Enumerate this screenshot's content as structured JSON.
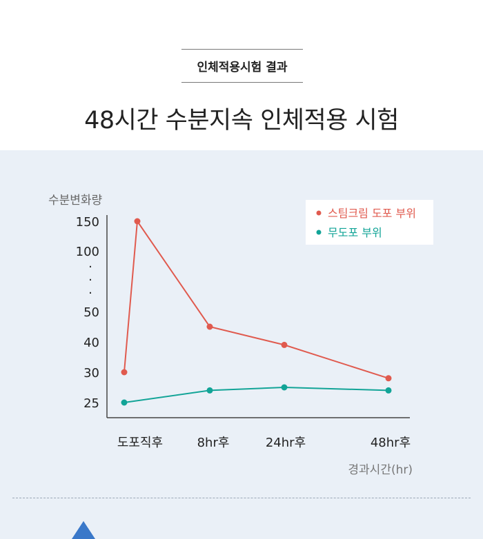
{
  "header": {
    "badge": "인체적용시험 결과",
    "title": "48시간 수분지속 인체적용 시험"
  },
  "chart_data": {
    "type": "line",
    "ylabel": "수분변화량",
    "xlabel": "경과시간(hr)",
    "categories": [
      "도포직후",
      "8hr후",
      "24hr후",
      "48hr후"
    ],
    "y_tick_labels": [
      "150",
      "100",
      "·",
      "·",
      "·",
      "50",
      "40",
      "30",
      "25"
    ],
    "series": [
      {
        "name": "스팀크림 도포 부위",
        "color": "#e05a4e",
        "points": [
          {
            "x": "도포직후",
            "y": 30
          },
          {
            "x": "도포직후",
            "y": 150
          },
          {
            "x": "8hr후",
            "y": 45
          },
          {
            "x": "24hr후",
            "y": 39
          },
          {
            "x": "48hr후",
            "y": 29
          }
        ]
      },
      {
        "name": "무도포 부위",
        "color": "#12a497",
        "points": [
          {
            "x": "도포직후",
            "y": 25
          },
          {
            "x": "8hr후",
            "y": 27
          },
          {
            "x": "24hr후",
            "y": 27.5
          },
          {
            "x": "48hr후",
            "y": 27
          }
        ]
      }
    ],
    "grid": false,
    "legend_position": "top-right"
  },
  "colors": {
    "panel_background": "#eaf0f7",
    "decoration_arrow": "#3a78c9"
  }
}
